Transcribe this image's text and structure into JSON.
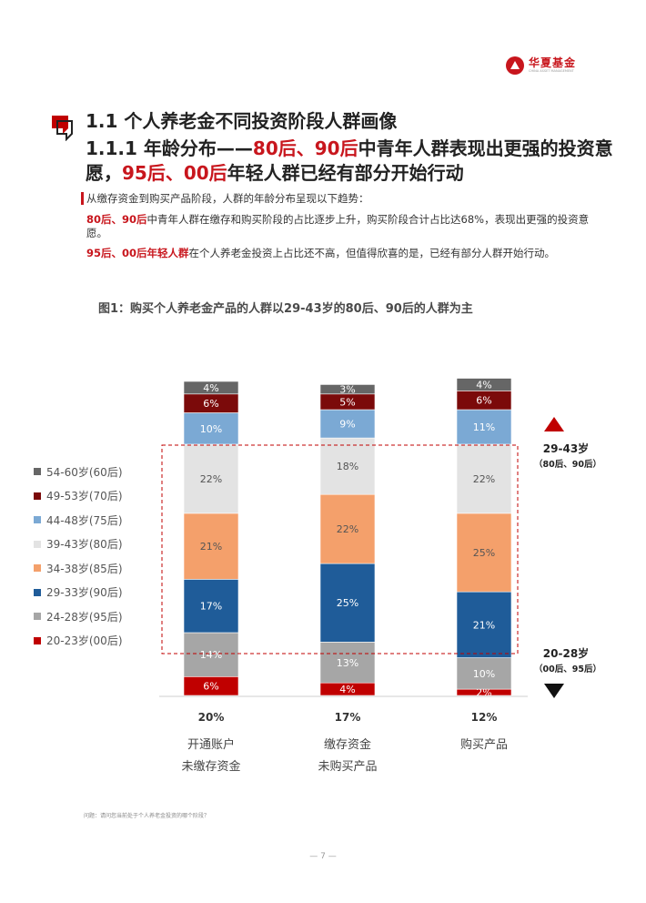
{
  "logo": {
    "name": "华夏基金",
    "english": "CHINA ASSET MANAGEMENT"
  },
  "heading": {
    "line1": "1.1 个人养老金不同投资阶段人群画像",
    "line2_prefix": "1.1.1 年龄分布——",
    "line2_red1": "80后、90后",
    "line2_mid": "中青年人群表现出更强的投资意愿，",
    "line2_red2": "95后、00后",
    "line2_suffix": "年轻人群已经有部分开始行动"
  },
  "paragraphs": {
    "intro": "从缴存资金到购买产品阶段，人群的年龄分布呈现以下趋势：",
    "p2_bold": "80后、90后",
    "p2_text": "中青年人群在缴存和购买阶段的占比逐步上升，购买阶段合计占比达68%，表现出更强的投资意愿。",
    "p3_bold": "95后、00后年轻人群",
    "p3_text": "在个人养老金投资上占比还不高，但值得欣喜的是，已经有部分人群开始行动。"
  },
  "figure_title": "图1：购买个人养老金产品的人群以29-43岁的80后、90后的人群为主",
  "annotations": {
    "up_label": "29-43岁",
    "up_sub": "（80后、90后）",
    "down_label": "20-28岁",
    "down_sub": "（00后、95后）"
  },
  "footnote": "问题：请问您当前处于个人养老金投资的哪个阶段？",
  "page_number": "— 7 —",
  "chart_data": {
    "type": "bar",
    "stacked": true,
    "categories": [
      "开通账户\n未缴存资金",
      "缴存资金\n未购买产品",
      "购买产品"
    ],
    "category_lines": [
      [
        "开通账户",
        "未缴存资金"
      ],
      [
        "缴存资金",
        "未购买产品"
      ],
      [
        "购买产品"
      ]
    ],
    "bottom_totals": [
      "20%",
      "17%",
      "12%"
    ],
    "ylim": [
      0,
      100
    ],
    "series": [
      {
        "name": "20-23岁(00后)",
        "color": "#c00000",
        "values": [
          6,
          4,
          2
        ]
      },
      {
        "name": "24-28岁(95后)",
        "color": "#a6a6a6",
        "values": [
          14,
          13,
          10
        ]
      },
      {
        "name": "29-33岁(90后)",
        "color": "#1f5c99",
        "values": [
          17,
          25,
          21
        ]
      },
      {
        "name": "34-38岁(85后)",
        "color": "#f4a06b",
        "values": [
          21,
          22,
          25
        ]
      },
      {
        "name": "39-43岁(80后)",
        "color": "#e3e3e3",
        "values": [
          22,
          18,
          22
        ]
      },
      {
        "name": "44-48岁(75后)",
        "color": "#7ba9d4",
        "values": [
          10,
          9,
          11
        ]
      },
      {
        "name": "49-53岁(70后)",
        "color": "#7b0a0a",
        "values": [
          6,
          5,
          6
        ]
      },
      {
        "name": "54-60岁(60后)",
        "color": "#666666",
        "values": [
          4,
          3,
          4
        ]
      }
    ],
    "legend_order": [
      "54-60岁(60后)",
      "49-53岁(70后)",
      "44-48岁(75后)",
      "39-43岁(80后)",
      "34-38岁(85后)",
      "29-33岁(90后)",
      "24-28岁(95后)",
      "20-23岁(00后)"
    ]
  }
}
